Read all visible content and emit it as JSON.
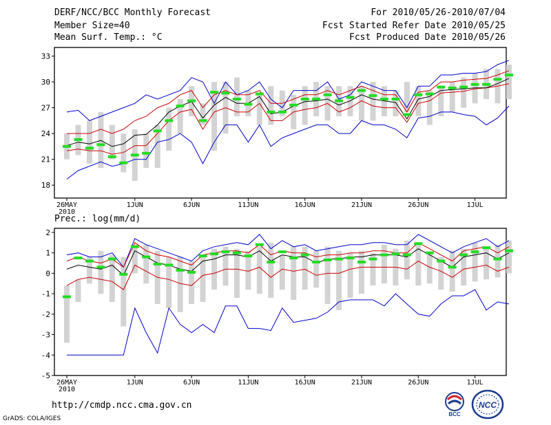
{
  "header": {
    "title": "DERF/NCC/BCC Monthly Forecast",
    "member_size": "Member Size=40",
    "variable": "Mean Surf. Temp.: °C",
    "forecast_range": "For 2010/05/26-2010/07/04",
    "start_refer": "Fcst Started Refer Date 2010/05/25",
    "produced": "Fcst Produced Date 2010/05/26"
  },
  "footer": {
    "url": "http://cmdp.ncc.cma.gov.cn",
    "credit": "GrADS: COLA/IGES",
    "logo_bcc": "BCC",
    "logo_ncc": "NCC"
  },
  "colors": {
    "box": "#d3d3d3",
    "median": "#22dd22",
    "mean": "#000000",
    "spread": "#cc0000",
    "extreme": "#0000cc",
    "frame": "#000000"
  },
  "chart_data": [
    {
      "type": "box-ensemble",
      "title": "Mean Surf. Temp.: °C",
      "xlabel": "",
      "ylabel": "",
      "ylim": [
        16.5,
        34
      ],
      "yticks": [
        18,
        21,
        24,
        27,
        30,
        33
      ],
      "xtick_labels": [
        "26MAY",
        "1JUN",
        "6JUN",
        "11JUN",
        "16JUN",
        "21JUN",
        "26JUN",
        "1JUL"
      ],
      "xtick_sublabel": "2010",
      "days": 40,
      "series": {
        "box_low": [
          21.0,
          21.5,
          20.5,
          20.0,
          21.0,
          19.5,
          18.5,
          20.0,
          20.0,
          22.0,
          24.0,
          26.0,
          25.0,
          22.0,
          24.0,
          26.0,
          26.0,
          25.0,
          25.0,
          26.0,
          24.5,
          25.0,
          26.0,
          25.5,
          26.0,
          26.0,
          25.5,
          25.5,
          26.0,
          26.0,
          26.5,
          26.0,
          25.0,
          26.0,
          26.5,
          27.0,
          27.5,
          28.0,
          27.5,
          28.0
        ],
        "box_high": [
          24.0,
          25.0,
          25.5,
          26.5,
          25.0,
          24.0,
          24.5,
          24.0,
          25.0,
          27.0,
          28.0,
          29.5,
          27.5,
          30.0,
          30.0,
          30.5,
          29.0,
          28.5,
          29.5,
          29.0,
          28.5,
          29.5,
          30.0,
          29.5,
          29.5,
          29.5,
          29.5,
          30.0,
          29.5,
          29.0,
          30.0,
          29.5,
          29.0,
          29.5,
          30.0,
          30.5,
          31.0,
          31.5,
          31.5,
          32.0
        ],
        "median": [
          22.5,
          23.3,
          22.3,
          22.7,
          21.3,
          20.6,
          21.5,
          21.7,
          24.3,
          25.5,
          27.2,
          27.8,
          25.5,
          28.8,
          28.7,
          28.0,
          27.4,
          28.6,
          26.5,
          26.5,
          27.3,
          28.0,
          28.0,
          28.5,
          27.8,
          28.2,
          29.0,
          28.4,
          28.0,
          28.0,
          26.2,
          28.5,
          28.6,
          29.4,
          29.3,
          29.4,
          29.7,
          29.7,
          30.3,
          30.8
        ],
        "mean": [
          22.6,
          23.0,
          22.8,
          23.2,
          22.5,
          22.8,
          23.8,
          23.9,
          25.0,
          26.5,
          27.2,
          27.7,
          25.8,
          27.3,
          28.2,
          27.5,
          27.5,
          28.3,
          26.3,
          26.5,
          27.2,
          27.7,
          27.8,
          28.0,
          27.3,
          27.8,
          28.5,
          28.0,
          27.8,
          27.6,
          25.7,
          28.0,
          28.3,
          29.0,
          29.1,
          29.2,
          29.3,
          29.3,
          29.8,
          30.4
        ],
        "spread_high": [
          24.0,
          24.0,
          24.0,
          24.5,
          24.0,
          24.5,
          25.5,
          26.0,
          27.0,
          27.5,
          28.5,
          29.0,
          27.0,
          28.5,
          29.0,
          28.5,
          28.5,
          29.0,
          27.5,
          27.5,
          28.0,
          28.5,
          28.5,
          29.0,
          28.5,
          29.0,
          29.5,
          29.0,
          28.5,
          28.5,
          26.5,
          28.8,
          29.0,
          30.0,
          30.0,
          30.2,
          30.3,
          30.4,
          30.8,
          31.3
        ],
        "spread_low": [
          22.0,
          22.2,
          22.0,
          22.0,
          21.6,
          21.8,
          22.6,
          22.6,
          24.0,
          25.5,
          26.5,
          26.8,
          24.5,
          26.5,
          27.0,
          26.5,
          26.5,
          27.5,
          25.5,
          25.5,
          26.5,
          26.8,
          27.0,
          27.5,
          26.5,
          27.0,
          27.8,
          27.2,
          27.0,
          27.0,
          25.3,
          27.5,
          27.8,
          28.7,
          28.8,
          28.9,
          29.2,
          29.3,
          29.5,
          29.8
        ],
        "max": [
          26.5,
          26.7,
          25.5,
          26.0,
          26.5,
          27.0,
          27.5,
          28.5,
          28.0,
          28.5,
          29.0,
          30.5,
          30.0,
          27.5,
          30.0,
          28.5,
          29.0,
          30.0,
          28.0,
          27.0,
          29.0,
          29.0,
          29.0,
          30.0,
          28.0,
          28.5,
          30.0,
          29.5,
          29.0,
          29.0,
          27.0,
          29.5,
          29.5,
          30.8,
          30.8,
          31.0,
          31.0,
          31.2,
          32.0,
          32.5
        ],
        "min": [
          18.7,
          19.7,
          20.2,
          20.7,
          20.2,
          20.5,
          21.0,
          21.0,
          23.0,
          23.3,
          24.0,
          23.0,
          20.5,
          23.0,
          25.0,
          25.0,
          23.0,
          25.0,
          22.5,
          23.5,
          24.0,
          24.5,
          25.0,
          25.0,
          24.0,
          24.0,
          25.5,
          25.0,
          25.0,
          24.5,
          23.5,
          25.8,
          26.0,
          26.5,
          26.5,
          26.2,
          26.0,
          25.0,
          25.8,
          27.2
        ]
      }
    },
    {
      "type": "box-ensemble",
      "title": "Prec.: log(mm/d)",
      "xlabel": "",
      "ylabel": "",
      "ylim": [
        -5,
        2.2
      ],
      "yticks": [
        -5,
        -4,
        -3,
        -2,
        -1,
        0,
        1,
        2
      ],
      "xtick_labels": [
        "26MAY",
        "1JUN",
        "6JUN",
        "11JUN",
        "16JUN",
        "21JUN",
        "26JUN",
        "1JUL"
      ],
      "xtick_sublabel": "2010",
      "days": 40,
      "series": {
        "box_low": [
          -3.4,
          -1.4,
          -0.5,
          -1.0,
          -1.4,
          -2.6,
          0.0,
          -0.5,
          -1.5,
          -1.7,
          -1.9,
          -1.5,
          -1.4,
          -0.8,
          -0.6,
          -1.2,
          -0.8,
          -1.0,
          -1.2,
          -0.8,
          -1.3,
          -0.8,
          -0.7,
          -1.5,
          -1.8,
          -1.2,
          -1.0,
          -0.6,
          -0.5,
          -0.6,
          -0.3,
          -0.6,
          -0.5,
          -0.8,
          -0.9,
          -0.6,
          -0.4,
          -0.3,
          -0.2,
          0.0
        ],
        "box_high": [
          -0.6,
          -0.3,
          0.8,
          1.1,
          0.9,
          0.8,
          1.4,
          1.4,
          1.1,
          0.8,
          0.8,
          0.6,
          0.8,
          1.2,
          1.3,
          1.2,
          1.1,
          1.3,
          1.5,
          0.9,
          1.3,
          1.3,
          1.1,
          1.3,
          1.1,
          1.0,
          1.1,
          1.0,
          1.4,
          1.2,
          1.6,
          1.4,
          1.0,
          0.8,
          1.1,
          1.2,
          1.5,
          1.3,
          1.4,
          1.6
        ],
        "median": [
          -1.15,
          0.75,
          0.6,
          0.3,
          0.7,
          -0.05,
          1.3,
          0.8,
          0.45,
          0.4,
          0.15,
          0.05,
          0.85,
          0.95,
          1.05,
          1.0,
          0.85,
          1.4,
          0.55,
          1.05,
          0.75,
          0.9,
          0.55,
          0.65,
          0.7,
          0.75,
          0.55,
          0.7,
          0.9,
          0.95,
          0.9,
          1.45,
          1.0,
          0.6,
          0.3,
          0.9,
          1.05,
          1.25,
          0.7,
          1.1
        ],
        "mean": [
          0.2,
          0.4,
          0.3,
          0.2,
          0.4,
          -0.1,
          1.1,
          0.8,
          0.5,
          0.4,
          0.2,
          0.1,
          0.6,
          0.7,
          0.9,
          0.9,
          0.8,
          1.1,
          0.6,
          0.9,
          0.8,
          0.8,
          0.5,
          0.7,
          0.7,
          0.8,
          0.8,
          0.9,
          0.9,
          0.9,
          0.8,
          1.2,
          0.9,
          0.6,
          0.3,
          0.8,
          0.9,
          1.0,
          0.7,
          1.0
        ],
        "spread_high": [
          0.6,
          0.8,
          0.6,
          0.5,
          0.7,
          0.3,
          1.5,
          1.1,
          0.9,
          0.8,
          0.6,
          0.4,
          0.9,
          1.0,
          1.1,
          1.1,
          1.0,
          1.4,
          0.9,
          1.1,
          1.0,
          1.0,
          0.8,
          0.9,
          0.9,
          1.0,
          1.0,
          1.1,
          1.1,
          1.0,
          1.0,
          1.5,
          1.2,
          0.9,
          0.6,
          1.1,
          1.2,
          1.3,
          1.0,
          1.3
        ],
        "spread_low": [
          -0.6,
          -0.3,
          -0.2,
          -0.3,
          -0.4,
          -0.8,
          0.4,
          0.1,
          -0.2,
          -0.3,
          -0.5,
          -0.6,
          -0.1,
          0.0,
          0.2,
          0.2,
          0.1,
          0.3,
          -0.2,
          0.2,
          0.1,
          0.2,
          -0.1,
          0.0,
          0.0,
          0.2,
          0.3,
          0.3,
          0.3,
          0.3,
          0.2,
          0.6,
          0.3,
          0.1,
          -0.2,
          0.2,
          0.3,
          0.4,
          0.1,
          0.3
        ],
        "max": [
          0.9,
          1.0,
          0.8,
          0.8,
          1.0,
          0.3,
          1.7,
          1.4,
          1.2,
          1.0,
          0.8,
          0.6,
          1.1,
          1.3,
          1.4,
          1.5,
          1.4,
          1.9,
          1.2,
          1.6,
          1.3,
          1.4,
          1.1,
          1.2,
          1.3,
          1.4,
          1.4,
          1.5,
          1.5,
          1.4,
          1.4,
          1.9,
          1.6,
          1.3,
          1.0,
          1.3,
          1.5,
          1.7,
          1.3,
          1.6
        ],
        "min": [
          -4.0,
          -4.0,
          -4.0,
          -4.0,
          -4.0,
          -4.0,
          -1.7,
          -2.9,
          -3.9,
          -1.7,
          -2.5,
          -2.9,
          -2.5,
          -2.9,
          -1.6,
          -1.6,
          -2.7,
          -2.7,
          -2.8,
          -1.7,
          -2.4,
          -2.3,
          -2.2,
          -1.9,
          -1.4,
          -1.3,
          -1.3,
          -1.3,
          -1.6,
          -1.0,
          -1.5,
          -2.0,
          -2.1,
          -1.5,
          -1.1,
          -1.1,
          -0.8,
          -1.8,
          -1.4,
          -1.5
        ]
      }
    }
  ]
}
